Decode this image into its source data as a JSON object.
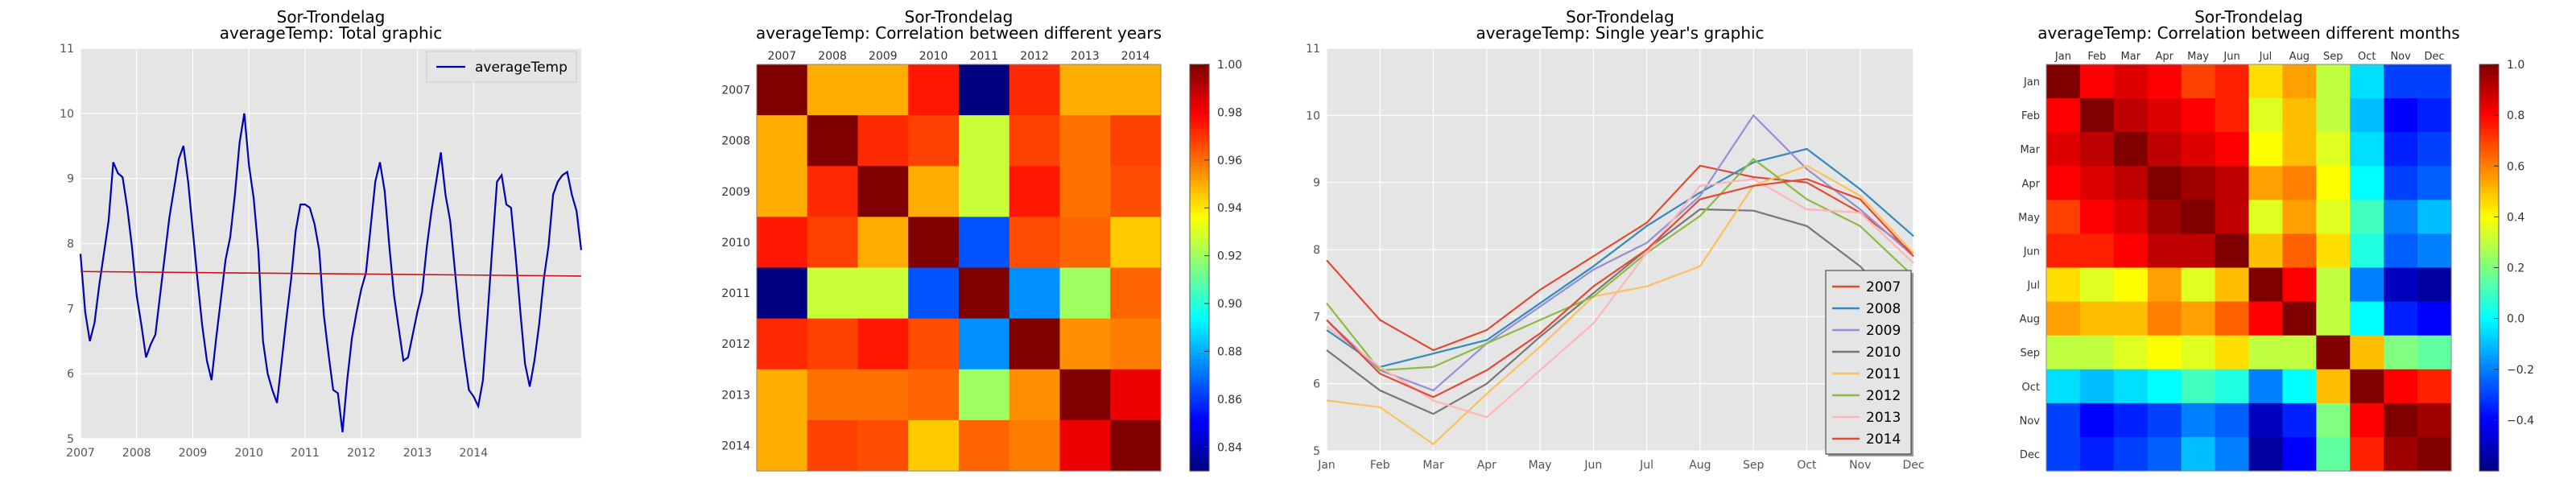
{
  "chart_data": [
    {
      "type": "line",
      "title": "Sor-Trondelag",
      "subtitle": "averageTemp: Total graphic",
      "x_ticks": [
        "2007",
        "2008",
        "2009",
        "2010",
        "2011",
        "2012",
        "2013",
        "2014"
      ],
      "ylim": [
        5,
        11
      ],
      "y_ticks": [
        "5",
        "6",
        "7",
        "8",
        "9",
        "10",
        "11"
      ],
      "grid": true,
      "legend": {
        "position": "top-right",
        "entries": [
          "averageTemp"
        ]
      },
      "colors": {
        "series": "#0000b4",
        "trend": "#c81414",
        "plot_bg": "#e5e5e5"
      },
      "series": [
        {
          "name": "averageTemp",
          "values": [
            7.84,
            6.95,
            6.5,
            6.78,
            7.36,
            7.85,
            8.35,
            9.25,
            9.08,
            9.02,
            8.55,
            7.95,
            7.2,
            6.75,
            6.25,
            6.45,
            6.6,
            7.2,
            7.8,
            8.4,
            8.85,
            9.3,
            9.5,
            8.95,
            8.2,
            7.45,
            6.75,
            6.2,
            5.9,
            6.55,
            7.15,
            7.75,
            8.1,
            8.75,
            9.55,
            10.0,
            9.2,
            8.7,
            7.9,
            6.5,
            6.0,
            5.75,
            5.55,
            6.2,
            6.85,
            7.45,
            8.2,
            8.6,
            8.6,
            8.55,
            8.3,
            7.9,
            6.9,
            6.3,
            5.75,
            5.7,
            5.1,
            5.9,
            6.55,
            6.95,
            7.3,
            7.55,
            8.25,
            8.95,
            9.25,
            8.8,
            7.95,
            7.2,
            6.7,
            6.2,
            6.25,
            6.6,
            6.95,
            7.25,
            7.95,
            8.5,
            8.95,
            9.4,
            8.75,
            8.35,
            7.6,
            6.85,
            6.25,
            5.75,
            5.65,
            5.5,
            5.9,
            6.9,
            7.95,
            8.95,
            9.05,
            8.6,
            8.55,
            7.8,
            6.95,
            6.15,
            5.8,
            6.2,
            6.75,
            7.45,
            7.95,
            8.75,
            8.95,
            9.05,
            9.1,
            8.75,
            8.5,
            7.9
          ]
        },
        {
          "name": "trend",
          "values": [
            7.57,
            7.5
          ]
        }
      ]
    },
    {
      "type": "heatmap",
      "title": "Sor-Trondelag",
      "subtitle": "averageTemp: Correlation between different years",
      "x_labels": [
        "2007",
        "2008",
        "2009",
        "2010",
        "2011",
        "2012",
        "2013",
        "2014"
      ],
      "y_labels": [
        "2007",
        "2008",
        "2009",
        "2010",
        "2011",
        "2012",
        "2013",
        "2014"
      ],
      "zlim": [
        0.83,
        1.0
      ],
      "colorbar_ticks": [
        "1.00",
        "0.98",
        "0.96",
        "0.94",
        "0.92",
        "0.90",
        "0.88",
        "0.86",
        "0.84"
      ],
      "colormap": "jet",
      "matrix": [
        [
          1.0,
          0.95,
          0.95,
          0.975,
          0.83,
          0.972,
          0.95,
          0.95
        ],
        [
          0.95,
          1.0,
          0.972,
          0.968,
          0.927,
          0.968,
          0.96,
          0.968
        ],
        [
          0.95,
          0.972,
          1.0,
          0.95,
          0.927,
          0.975,
          0.96,
          0.966
        ],
        [
          0.975,
          0.968,
          0.95,
          1.0,
          0.865,
          0.966,
          0.962,
          0.945
        ],
        [
          0.83,
          0.927,
          0.927,
          0.865,
          1.0,
          0.875,
          0.92,
          0.962
        ],
        [
          0.972,
          0.968,
          0.975,
          0.966,
          0.875,
          1.0,
          0.955,
          0.958
        ],
        [
          0.95,
          0.96,
          0.96,
          0.962,
          0.92,
          0.955,
          1.0,
          0.982
        ],
        [
          0.95,
          0.968,
          0.966,
          0.945,
          0.962,
          0.958,
          0.982,
          1.0
        ]
      ]
    },
    {
      "type": "line",
      "title": "Sor-Trondelag",
      "subtitle": "averageTemp: Single year's graphic",
      "x_ticks": [
        "Jan",
        "Feb",
        "Mar",
        "Apr",
        "May",
        "Jun",
        "Jul",
        "Aug",
        "Sep",
        "Oct",
        "Nov",
        "Dec"
      ],
      "ylim": [
        5,
        11
      ],
      "y_ticks": [
        "5",
        "6",
        "7",
        "8",
        "9",
        "10",
        "11"
      ],
      "grid": true,
      "legend": {
        "position": "bottom-right"
      },
      "series": [
        {
          "name": "2007",
          "color": "#e24a33",
          "values": [
            7.84,
            6.95,
            6.5,
            6.8,
            7.4,
            7.9,
            8.4,
            9.25,
            9.08,
            9.0,
            8.55,
            7.95
          ]
        },
        {
          "name": "2008",
          "color": "#348abd",
          "values": [
            6.8,
            6.25,
            6.45,
            6.65,
            7.2,
            7.75,
            8.35,
            8.85,
            9.3,
            9.5,
            8.9,
            8.2
          ]
        },
        {
          "name": "2009",
          "color": "#988ed5",
          "values": [
            6.95,
            6.2,
            5.9,
            6.6,
            7.15,
            7.7,
            8.1,
            8.8,
            10.0,
            9.2,
            8.6,
            7.9
          ]
        },
        {
          "name": "2010",
          "color": "#777777",
          "values": [
            6.5,
            5.9,
            5.55,
            6.0,
            6.7,
            7.35,
            8.0,
            8.6,
            8.58,
            8.35,
            7.75,
            6.9
          ]
        },
        {
          "name": "2011",
          "color": "#fbc15e",
          "values": [
            5.75,
            5.65,
            5.1,
            5.85,
            6.55,
            7.3,
            7.45,
            7.75,
            8.95,
            9.25,
            8.8,
            7.95
          ]
        },
        {
          "name": "2012",
          "color": "#8eba42",
          "values": [
            7.2,
            6.2,
            6.25,
            6.6,
            6.95,
            7.3,
            7.95,
            8.5,
            9.35,
            8.75,
            8.35,
            7.6
          ]
        },
        {
          "name": "2013",
          "color": "#ffb5b8",
          "values": [
            6.85,
            6.25,
            5.75,
            5.5,
            6.2,
            6.9,
            7.95,
            8.95,
            9.05,
            8.6,
            8.55,
            7.8
          ]
        },
        {
          "name": "2014",
          "color": "#e24a33",
          "values": [
            6.95,
            6.15,
            5.8,
            6.2,
            6.75,
            7.45,
            8.0,
            8.75,
            8.95,
            9.05,
            8.75,
            7.9
          ]
        }
      ]
    },
    {
      "type": "heatmap",
      "title": "Sor-Trondelag",
      "subtitle": "averageTemp: Correlation between different months",
      "x_labels": [
        "Jan",
        "Feb",
        "Mar",
        "Apr",
        "May",
        "Jun",
        "Jul",
        "Aug",
        "Sep",
        "Oct",
        "Nov",
        "Dec"
      ],
      "y_labels": [
        "Jan",
        "Feb",
        "Mar",
        "Apr",
        "May",
        "Jun",
        "Jul",
        "Aug",
        "Sep",
        "Oct",
        "Nov",
        "Dec"
      ],
      "zlim": [
        -0.6,
        1.0
      ],
      "colorbar_ticks": [
        "1.0",
        "0.8",
        "0.6",
        "0.4",
        "0.2",
        "0.0",
        "−0.2",
        "−0.4"
      ],
      "colormap": "jet",
      "matrix": [
        [
          1.0,
          0.8,
          0.85,
          0.8,
          0.7,
          0.75,
          0.45,
          0.55,
          0.3,
          -0.05,
          -0.3,
          -0.3
        ],
        [
          0.8,
          1.0,
          0.9,
          0.85,
          0.8,
          0.75,
          0.35,
          0.5,
          0.3,
          -0.1,
          -0.4,
          -0.35
        ],
        [
          0.85,
          0.9,
          1.0,
          0.9,
          0.85,
          0.8,
          0.4,
          0.5,
          0.35,
          -0.05,
          -0.35,
          -0.3
        ],
        [
          0.8,
          0.85,
          0.9,
          1.0,
          0.95,
          0.9,
          0.55,
          0.6,
          0.4,
          0.0,
          -0.3,
          -0.25
        ],
        [
          0.7,
          0.8,
          0.85,
          0.95,
          1.0,
          0.9,
          0.35,
          0.55,
          0.35,
          0.1,
          -0.2,
          -0.1
        ],
        [
          0.75,
          0.75,
          0.8,
          0.9,
          0.9,
          1.0,
          0.5,
          0.65,
          0.45,
          0.05,
          -0.25,
          -0.2
        ],
        [
          0.45,
          0.35,
          0.4,
          0.55,
          0.35,
          0.5,
          1.0,
          0.8,
          0.3,
          -0.2,
          -0.5,
          -0.55
        ],
        [
          0.55,
          0.5,
          0.5,
          0.6,
          0.55,
          0.65,
          0.8,
          1.0,
          0.3,
          0.0,
          -0.35,
          -0.4
        ],
        [
          0.3,
          0.3,
          0.35,
          0.4,
          0.35,
          0.45,
          0.3,
          0.3,
          1.0,
          0.5,
          0.2,
          0.15
        ],
        [
          -0.05,
          -0.1,
          -0.05,
          0.0,
          0.1,
          0.05,
          -0.2,
          0.0,
          0.5,
          1.0,
          0.8,
          0.75
        ],
        [
          -0.3,
          -0.4,
          -0.35,
          -0.3,
          -0.2,
          -0.25,
          -0.5,
          -0.35,
          0.2,
          0.8,
          1.0,
          0.95
        ],
        [
          -0.3,
          -0.35,
          -0.3,
          -0.25,
          -0.1,
          -0.2,
          -0.55,
          -0.4,
          0.15,
          0.75,
          0.95,
          1.0
        ]
      ]
    }
  ]
}
